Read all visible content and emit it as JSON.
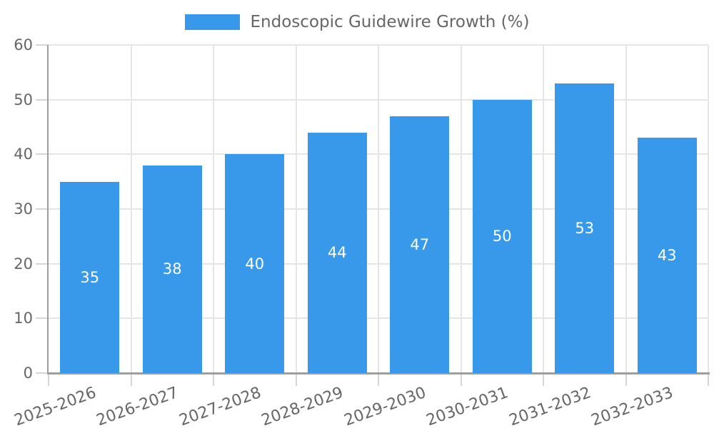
{
  "legend": {
    "label": "Endoscopic Guidewire Growth (%)"
  },
  "colors": {
    "bar": "#3899EB",
    "axis_text": "#666666",
    "axis_line": "#9E9E9E",
    "grid": "#E5E5E5",
    "tick": "#D6D6D6",
    "value_label": "#FFFFFF",
    "background": "#FFFFFF"
  },
  "chart_data": {
    "type": "bar",
    "title": "",
    "xlabel": "",
    "ylabel": "",
    "legend_entries": [
      "Endoscopic Guidewire Growth (%)"
    ],
    "legend_position": "top",
    "categories": [
      "2025-2026",
      "2026-2027",
      "2027-2028",
      "2028-2029",
      "2029-2030",
      "2030-2031",
      "2031-2032",
      "2032-2033"
    ],
    "values": [
      35,
      38,
      40,
      44,
      47,
      50,
      53,
      43
    ],
    "ylim": [
      0,
      60
    ],
    "yticks": [
      0,
      10,
      20,
      30,
      40,
      50,
      60
    ],
    "grid": true,
    "value_labels": "inside-center",
    "x_label_rotation_deg": -20
  }
}
